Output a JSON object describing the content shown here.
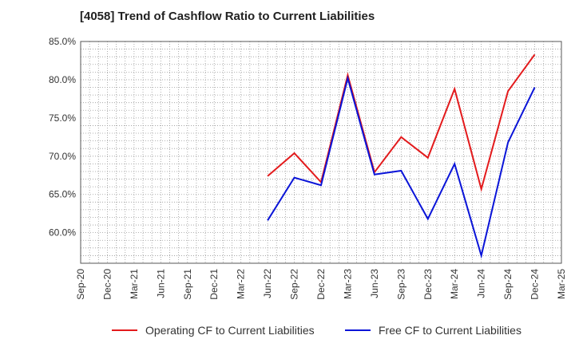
{
  "chart_data": {
    "type": "line",
    "title": "[4058]  Trend of Cashflow Ratio to Current Liabilities",
    "xlabel": "",
    "ylabel": "",
    "ylim": [
      56.0,
      85.0
    ],
    "y_ticks": [
      "85.0%",
      "80.0%",
      "75.0%",
      "70.0%",
      "65.0%",
      "60.0%"
    ],
    "y_tick_values": [
      85,
      80,
      75,
      70,
      65,
      60
    ],
    "categories": [
      "Sep-20",
      "Dec-20",
      "Mar-21",
      "Jun-21",
      "Sep-21",
      "Dec-21",
      "Mar-22",
      "Jun-22",
      "Sep-22",
      "Dec-22",
      "Mar-23",
      "Jun-23",
      "Sep-23",
      "Dec-23",
      "Mar-24",
      "Jun-24",
      "Sep-24",
      "Dec-24",
      "Mar-25"
    ],
    "grid": true,
    "legend_position": "bottom",
    "series": [
      {
        "name": "Operating CF to Current Liabilities",
        "color": "#e31a1c",
        "values": [
          null,
          null,
          null,
          null,
          null,
          null,
          null,
          67.4,
          70.4,
          66.6,
          80.6,
          67.9,
          72.5,
          69.8,
          78.8,
          65.7,
          78.5,
          83.3,
          null
        ]
      },
      {
        "name": "Free CF to Current Liabilities",
        "color": "#0a14d8",
        "values": [
          null,
          null,
          null,
          null,
          null,
          null,
          null,
          61.6,
          67.2,
          66.2,
          80.2,
          67.6,
          68.1,
          61.8,
          69.0,
          57.0,
          71.8,
          79.0,
          null
        ]
      }
    ]
  }
}
